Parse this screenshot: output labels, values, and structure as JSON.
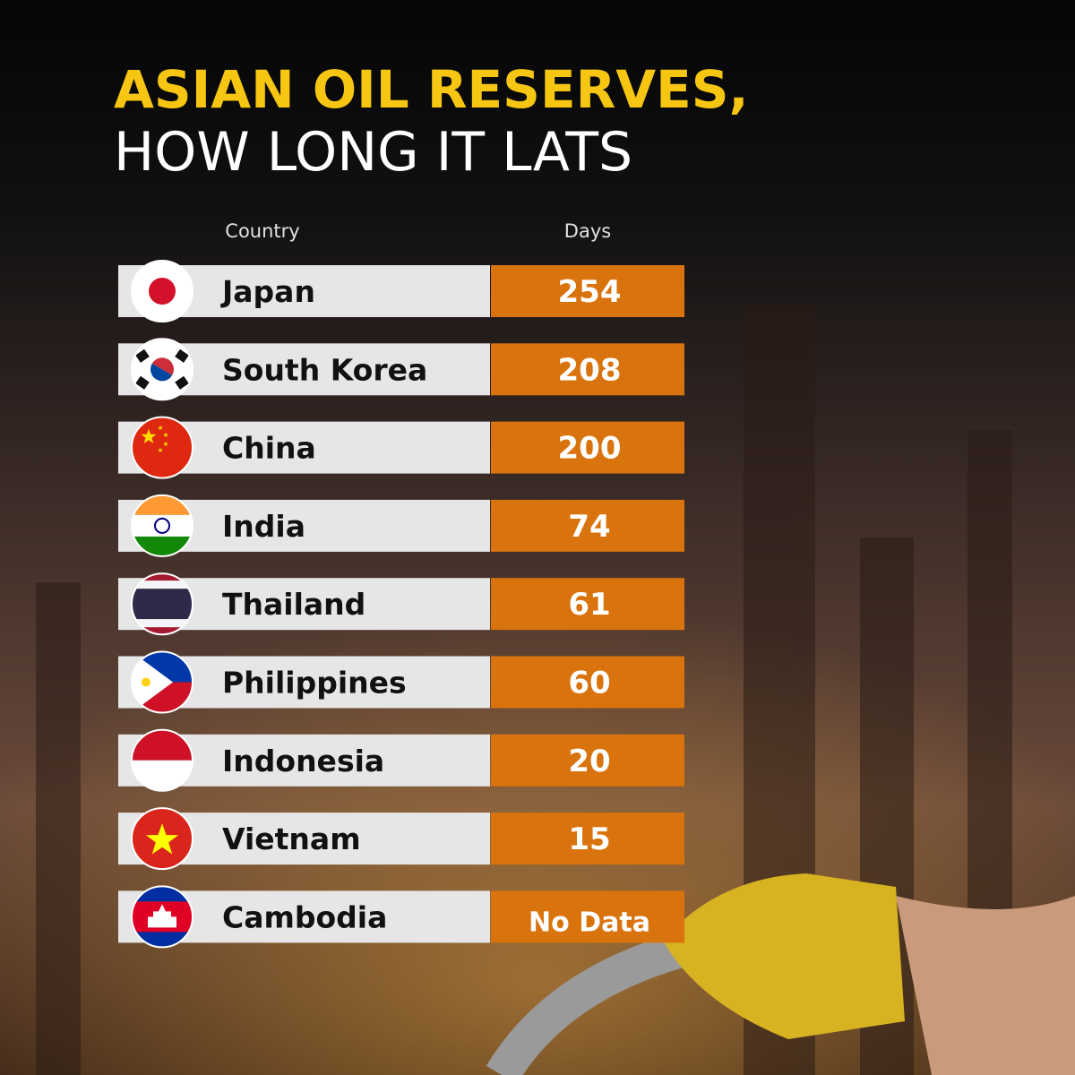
{
  "header": {
    "title": "ASIAN OIL RESERVES,",
    "subtitle": "HOW LONG IT LATS"
  },
  "table": {
    "columns": [
      "Country",
      "Days"
    ],
    "rows": [
      [
        "Japan",
        254
      ],
      [
        "South Korea",
        208
      ],
      [
        "China",
        200
      ],
      [
        "India",
        74
      ],
      [
        "Thailand",
        61
      ],
      [
        "Philippines",
        60
      ],
      [
        "Indonesia",
        20
      ],
      [
        "Vietnam",
        15
      ],
      [
        "Cambodia",
        "No Data"
      ]
    ]
  }
}
